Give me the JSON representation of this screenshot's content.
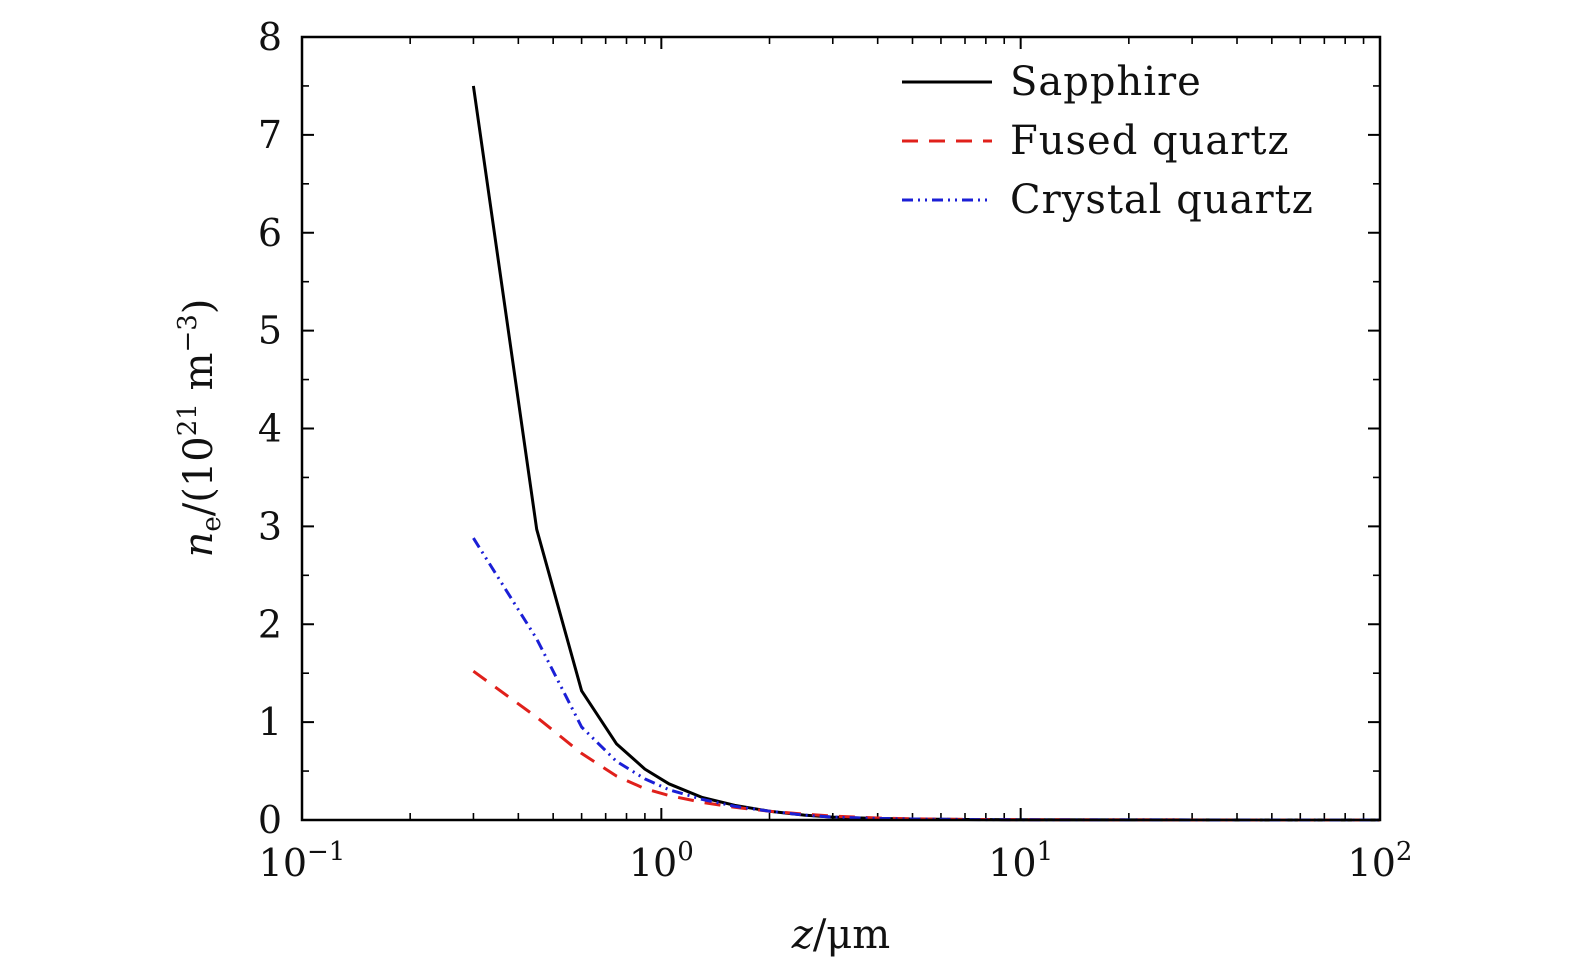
{
  "chart_data": {
    "type": "line",
    "xscale": "log",
    "xlim": [
      0.1,
      100
    ],
    "ylim": [
      0,
      8
    ],
    "x_ticks": [
      {
        "value": 0.1,
        "base": "10",
        "exp": "−1"
      },
      {
        "value": 1,
        "base": "10",
        "exp": "0"
      },
      {
        "value": 10,
        "base": "10",
        "exp": "1"
      },
      {
        "value": 100,
        "base": "10",
        "exp": "2"
      }
    ],
    "y_ticks": [
      0,
      1,
      2,
      3,
      4,
      5,
      6,
      7,
      8
    ],
    "xlabel": {
      "var": "z",
      "unit": "/μm"
    },
    "ylabel": {
      "var": "n",
      "sub": "e",
      "pre": "/(10",
      "exp1": "21",
      "mid": " m",
      "exp2": "−3",
      "post": ")"
    },
    "legend_position": "top-right",
    "grid": false,
    "series": [
      {
        "name": "Sapphire",
        "color": "#000000",
        "style": "solid",
        "x": [
          0.3,
          0.45,
          0.6,
          0.75,
          0.9,
          1.05,
          1.3,
          1.6,
          2.0,
          2.5,
          3.0,
          4.0,
          5.0,
          7.0,
          10,
          20,
          50,
          100
        ],
        "y": [
          7.5,
          2.97,
          1.32,
          0.78,
          0.52,
          0.37,
          0.23,
          0.15,
          0.09,
          0.05,
          0.03,
          0.015,
          0.01,
          0.005,
          0.002,
          0.001,
          0.0,
          0.0
        ]
      },
      {
        "name": "Fused quartz",
        "color": "#e0201b",
        "style": "dashed",
        "x": [
          0.3,
          0.45,
          0.6,
          0.75,
          0.9,
          1.05,
          1.3,
          1.6,
          2.0,
          2.5,
          3.0,
          4.0,
          5.0,
          7.0,
          10,
          20,
          50,
          100
        ],
        "y": [
          1.52,
          1.05,
          0.68,
          0.45,
          0.32,
          0.25,
          0.18,
          0.13,
          0.09,
          0.06,
          0.04,
          0.02,
          0.012,
          0.006,
          0.003,
          0.001,
          0.0,
          0.0
        ]
      },
      {
        "name": "Crystal quartz",
        "color": "#1b1fd6",
        "style": "dashdotdot",
        "x": [
          0.3,
          0.45,
          0.6,
          0.75,
          0.9,
          1.05,
          1.3,
          1.6,
          2.0,
          2.5,
          3.0,
          4.0,
          5.0,
          7.0,
          10,
          20,
          50,
          100
        ],
        "y": [
          2.88,
          1.85,
          0.95,
          0.6,
          0.42,
          0.31,
          0.21,
          0.14,
          0.09,
          0.05,
          0.03,
          0.015,
          0.01,
          0.005,
          0.002,
          0.001,
          0.0,
          0.0
        ]
      }
    ]
  }
}
